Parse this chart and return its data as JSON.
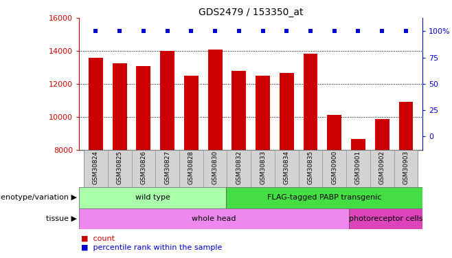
{
  "title": "GDS2479 / 153350_at",
  "samples": [
    "GSM30824",
    "GSM30825",
    "GSM30826",
    "GSM30827",
    "GSM30828",
    "GSM30830",
    "GSM30832",
    "GSM30833",
    "GSM30834",
    "GSM30835",
    "GSM30900",
    "GSM30901",
    "GSM30902",
    "GSM30903"
  ],
  "counts": [
    13600,
    13250,
    13100,
    14000,
    12500,
    14100,
    12800,
    12500,
    12650,
    13850,
    10100,
    8650,
    9850,
    10900
  ],
  "percentiles": [
    100,
    100,
    100,
    100,
    100,
    100,
    100,
    100,
    100,
    100,
    100,
    100,
    100,
    100
  ],
  "bar_color": "#cc0000",
  "dot_color": "#0000cc",
  "ymin": 8000,
  "ymax": 16000,
  "yticks_left": [
    8000,
    10000,
    12000,
    14000,
    16000
  ],
  "yticks_right": [
    0,
    25,
    50,
    75,
    100
  ],
  "genotype_groups": [
    {
      "label": "wild type",
      "start": 0,
      "end": 5,
      "color": "#aaffaa"
    },
    {
      "label": "FLAG-tagged PABP transgenic",
      "start": 6,
      "end": 13,
      "color": "#44dd44"
    }
  ],
  "tissue_groups": [
    {
      "label": "whole head",
      "start": 0,
      "end": 10,
      "color": "#ee88ee"
    },
    {
      "label": "photoreceptor cells",
      "start": 11,
      "end": 13,
      "color": "#dd44bb"
    }
  ],
  "genotype_label": "genotype/variation",
  "tissue_label": "tissue",
  "legend_count_label": "count",
  "legend_percentile_label": "percentile rank within the sample",
  "tick_color_left": "#cc0000",
  "tick_color_right": "#0000cc",
  "title_fontsize": 10,
  "axis_fontsize": 8,
  "sample_fontsize": 6.5,
  "annot_fontsize": 8,
  "legend_fontsize": 8,
  "xtick_bg": "#d3d3d3"
}
